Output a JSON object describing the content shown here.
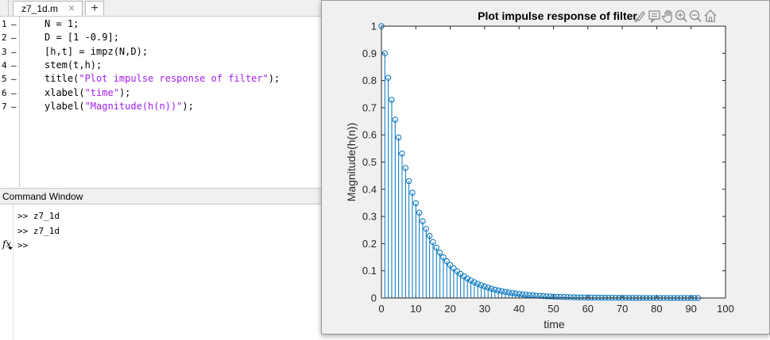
{
  "editor": {
    "tab": {
      "label": "z7_1d.m",
      "close": "×"
    },
    "add_tab": "+",
    "lines": [
      {
        "num": "1",
        "marker": "–",
        "text": "N = 1;"
      },
      {
        "num": "2",
        "marker": "–",
        "text": "D = [1 -0.9];"
      },
      {
        "num": "3",
        "marker": "–",
        "text": "[h,t] = impz(N,D);"
      },
      {
        "num": "4",
        "marker": "–",
        "text": "stem(t,h);"
      },
      {
        "num": "5",
        "marker": "–",
        "pre": "title(",
        "str": "\"Plot impulse response of filter\"",
        "post": ");"
      },
      {
        "num": "6",
        "marker": "–",
        "pre": "xlabel(",
        "str": "\"time\"",
        "post": ");"
      },
      {
        "num": "7",
        "marker": "–",
        "pre": "ylabel(",
        "str": "\"Magnitude(h(n))\"",
        "post": ");"
      }
    ],
    "string_color": "#a020f0"
  },
  "command_window": {
    "title": "Command Window",
    "history": [
      ">> z7_1d",
      ">> z7_1d"
    ],
    "prompt": ">>",
    "fx_label": "fx"
  },
  "figure": {
    "toolbar_icons": [
      "brush-icon",
      "data-tips-icon",
      "pan-hand-icon",
      "zoom-in-icon",
      "zoom-out-icon",
      "home-icon"
    ]
  },
  "chart_data": {
    "type": "stem",
    "title": "Plot impulse response of filter",
    "xlabel": "time",
    "ylabel": "Magnitude(h(n))",
    "xlim": [
      0,
      100
    ],
    "ylim": [
      0,
      1
    ],
    "xticks": [
      0,
      10,
      20,
      30,
      40,
      50,
      60,
      70,
      80,
      90,
      100
    ],
    "yticks": [
      0,
      0.1,
      0.2,
      0.3,
      0.4,
      0.5,
      0.6,
      0.7,
      0.8,
      0.9,
      1
    ],
    "series": [
      {
        "color": "#0072bd",
        "x": [
          0,
          1,
          2,
          3,
          4,
          5,
          6,
          7,
          8,
          9,
          10,
          11,
          12,
          13,
          14,
          15,
          16,
          17,
          18,
          19,
          20,
          21,
          22,
          23,
          24,
          25,
          26,
          27,
          28,
          29,
          30,
          31,
          32,
          33,
          34,
          35,
          36,
          37,
          38,
          39,
          40,
          41,
          42,
          43,
          44,
          45,
          46,
          47,
          48,
          49,
          50,
          51,
          52,
          53,
          54,
          55,
          56,
          57,
          58,
          59,
          60,
          61,
          62,
          63,
          64,
          65,
          66,
          67,
          68,
          69,
          70,
          71,
          72,
          73,
          74,
          75,
          76,
          77,
          78,
          79,
          80,
          81,
          82,
          83,
          84,
          85,
          86,
          87,
          88,
          89,
          90,
          91,
          92
        ],
        "y": [
          1,
          0.9,
          0.81,
          0.729,
          0.6561,
          0.5905,
          0.5314,
          0.4783,
          0.4305,
          0.3874,
          0.3487,
          0.3138,
          0.2824,
          0.2542,
          0.2288,
          0.2059,
          0.1853,
          0.1668,
          0.1501,
          0.1351,
          0.1216,
          0.1094,
          0.0985,
          0.0886,
          0.0798,
          0.0718,
          0.0646,
          0.0581,
          0.0523,
          0.0471,
          0.0424,
          0.0382,
          0.0343,
          0.0309,
          0.0278,
          0.025,
          0.0225,
          0.0203,
          0.0182,
          0.0164,
          0.0148,
          0.0133,
          0.012,
          0.0108,
          0.0097,
          0.0087,
          0.0079,
          0.0071,
          0.0064,
          0.0057,
          0.0052,
          0.0046,
          0.0042,
          0.0038,
          0.0034,
          0.0031,
          0.0027,
          0.0025,
          0.0022,
          0.002,
          0.0018,
          0.0016,
          0.0015,
          0.0013,
          0.0012,
          0.0011,
          0.001,
          0.0009,
          0.0008,
          0.0007,
          0.0006,
          0.0006,
          0.0005,
          0.0005,
          0.0004,
          0.0004,
          0.0003,
          0.0003,
          0.0003,
          0.0002,
          0.0002,
          0.0002,
          0.0002,
          0.0002,
          0.0001,
          0.0001,
          0.0001,
          0.0001,
          0.0001,
          0.0001,
          0.0001,
          0.0001,
          0.0001
        ]
      }
    ]
  }
}
